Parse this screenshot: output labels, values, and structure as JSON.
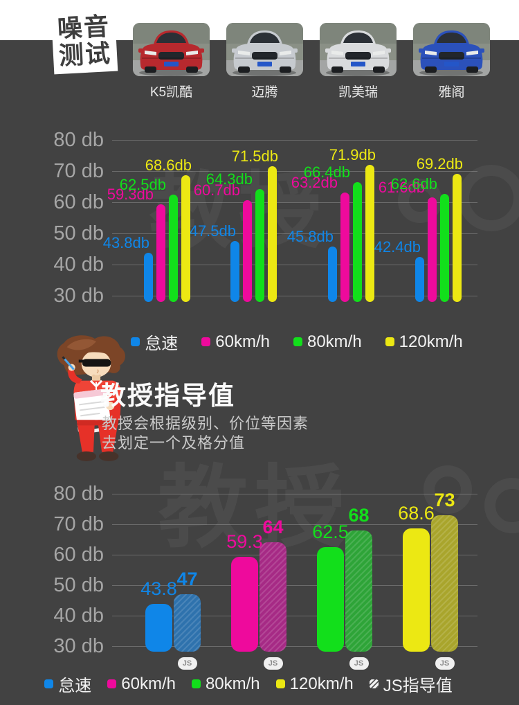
{
  "colors": {
    "background": "#424242",
    "idle_blue": "#0f86e8",
    "speed60_magenta": "#ee0a9c",
    "speed80_green": "#12df1b",
    "speed120_yellow": "#ece813",
    "hatch_blue": "#2e72ad",
    "hatch_magenta": "#a62a85",
    "hatch_green": "#2ea438",
    "hatch_yellow": "#a9a52c"
  },
  "header": {
    "badge_line1": "噪音",
    "badge_line2": "测试",
    "cars": [
      {
        "label": "K5凯酷",
        "body_color": "#b7292e"
      },
      {
        "label": "迈腾",
        "body_color": "#c6cacf"
      },
      {
        "label": "凯美瑞",
        "body_color": "#d9dbdd"
      },
      {
        "label": "雅阁",
        "body_color": "#2b51bb"
      }
    ]
  },
  "watermark": "教授",
  "section": {
    "title": "教授指导值",
    "desc_line1": "教授会根据级别、价位等因素",
    "desc_line2": "去划定一个及格分值"
  },
  "chart_data": [
    {
      "type": "bar",
      "categories": [
        "K5凯酷",
        "迈腾",
        "凯美瑞",
        "雅阁"
      ],
      "series": [
        {
          "name": "怠速",
          "color": "#0f86e8",
          "values": [
            43.8,
            47.5,
            45.8,
            42.4
          ]
        },
        {
          "name": "60km/h",
          "color": "#ee0a9c",
          "values": [
            59.3,
            60.7,
            63.2,
            61.6
          ]
        },
        {
          "name": "80km/h",
          "color": "#12df1b",
          "values": [
            62.5,
            64.3,
            66.4,
            62.6
          ]
        },
        {
          "name": "120km/h",
          "color": "#ece813",
          "values": [
            68.6,
            71.5,
            71.9,
            69.2
          ]
        }
      ],
      "value_suffix": "db",
      "yticks": [
        "80 db",
        "70 db",
        "60 db",
        "50 db",
        "40 db",
        "30 db"
      ],
      "ylim": [
        30,
        80
      ],
      "grid": true,
      "legend_position": "bottom"
    },
    {
      "type": "bar",
      "categories": [
        "怠速",
        "60km/h",
        "80km/h",
        "120km/h"
      ],
      "series": [
        {
          "role": "measured",
          "values": [
            43.8,
            59.3,
            62.5,
            68.6
          ],
          "colors": [
            "#0f86e8",
            "#ee0a9c",
            "#12df1b",
            "#ece813"
          ]
        },
        {
          "role": "guide",
          "name": "JS指导值",
          "values": [
            47,
            64,
            68,
            73
          ],
          "colors": [
            "#2e72ad",
            "#a62a85",
            "#2ea438",
            "#a9a52c"
          ],
          "hatched": true,
          "bar_badge": "JS"
        }
      ],
      "value_suffix": "",
      "yticks": [
        "80 db",
        "70 db",
        "60 db",
        "50 db",
        "40 db",
        "30 db"
      ],
      "ylim": [
        30,
        80
      ],
      "grid": true,
      "legend_position": "bottom"
    }
  ],
  "legend1": [
    {
      "label": "怠速",
      "color": "#0f86e8"
    },
    {
      "label": "60km/h",
      "color": "#ee0a9c"
    },
    {
      "label": "80km/h",
      "color": "#12df1b"
    },
    {
      "label": "120km/h",
      "color": "#ece813"
    }
  ],
  "legend2": [
    {
      "label": "怠速",
      "color": "#0f86e8"
    },
    {
      "label": "60km/h",
      "color": "#ee0a9c"
    },
    {
      "label": "80km/h",
      "color": "#12df1b"
    },
    {
      "label": "120km/h",
      "color": "#ece813"
    },
    {
      "label": "JS指导值",
      "swatch": "hatch"
    }
  ],
  "js_badge": "JS"
}
